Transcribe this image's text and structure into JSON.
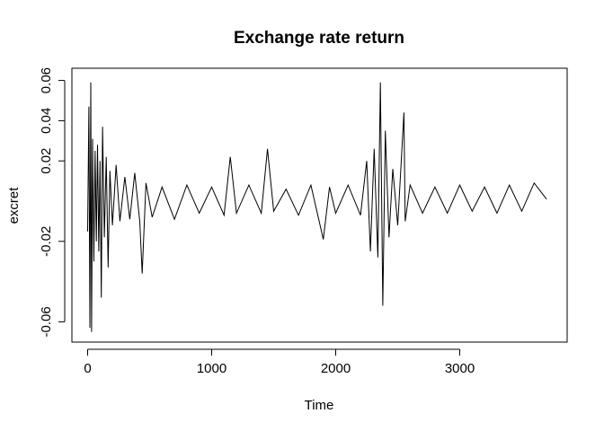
{
  "chart_data": {
    "type": "line",
    "title": "Exchange rate return",
    "xlabel": "Time",
    "ylabel": "excret",
    "xlim": [
      0,
      3720
    ],
    "ylim": [
      -0.068,
      0.062
    ],
    "x_ticks": [
      0,
      1000,
      2000,
      3000
    ],
    "x_tick_labels": [
      "0",
      "1000",
      "2000",
      "3000"
    ],
    "y_ticks": [
      -0.06,
      -0.02,
      0.02,
      0.04,
      0.06
    ],
    "y_tick_labels": [
      "-0.06",
      "-0.02",
      "0.02",
      "0.04",
      "0.06"
    ],
    "grid": false,
    "line_color": "#000000",
    "series": [
      {
        "x": [
          0,
          10,
          18,
          25,
          32,
          40,
          50,
          60,
          70,
          80,
          90,
          100,
          110,
          120,
          135,
          150,
          165,
          180,
          200,
          230,
          260,
          300,
          340,
          380,
          420,
          440,
          470,
          520,
          600,
          700,
          800,
          900,
          1000,
          1100,
          1150,
          1200,
          1300,
          1400,
          1450,
          1500,
          1600,
          1700,
          1800,
          1900,
          1950,
          2000,
          2100,
          2200,
          2250,
          2280,
          2310,
          2340,
          2360,
          2380,
          2400,
          2430,
          2460,
          2500,
          2550,
          2560,
          2600,
          2700,
          2800,
          2900,
          3000,
          3100,
          3200,
          3300,
          3400,
          3500,
          3600,
          3700
        ],
        "y": [
          -0.015,
          0.047,
          -0.063,
          0.059,
          -0.065,
          0.031,
          -0.03,
          0.025,
          -0.02,
          0.028,
          -0.025,
          0.02,
          -0.048,
          0.037,
          -0.018,
          0.022,
          -0.033,
          0.015,
          -0.012,
          0.018,
          -0.01,
          0.012,
          -0.009,
          0.014,
          -0.01,
          -0.036,
          0.009,
          -0.008,
          0.007,
          -0.009,
          0.008,
          -0.006,
          0.007,
          -0.007,
          0.022,
          -0.006,
          0.008,
          -0.006,
          0.026,
          -0.005,
          0.006,
          -0.007,
          0.008,
          -0.019,
          0.007,
          -0.006,
          0.008,
          -0.007,
          0.02,
          -0.025,
          0.026,
          -0.028,
          0.059,
          -0.052,
          0.035,
          -0.018,
          0.016,
          -0.012,
          0.044,
          -0.01,
          0.008,
          -0.006,
          0.007,
          -0.006,
          0.008,
          -0.005,
          0.007,
          -0.006,
          0.008,
          -0.005,
          0.009,
          0.001
        ]
      }
    ]
  }
}
